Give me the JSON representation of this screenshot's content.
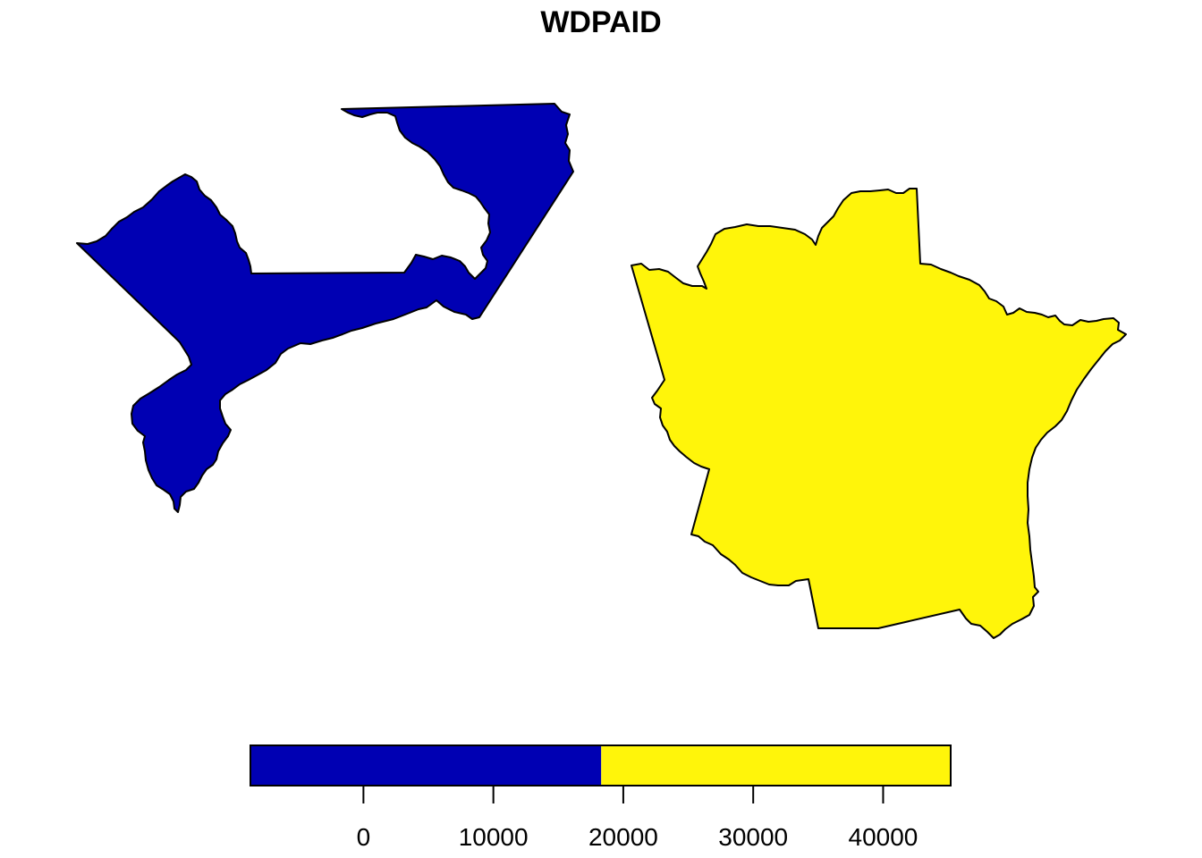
{
  "title": "WDPAID",
  "regions": [
    {
      "id": "left-region",
      "color": "#0000B3",
      "class": "low"
    },
    {
      "id": "right-region",
      "color": "#FFF50A",
      "class": "high"
    }
  ],
  "legend": {
    "type": "colorbar",
    "range": [
      -8700,
      45200
    ],
    "breaks": [
      -8700,
      18300,
      45200
    ],
    "colors": [
      "#0000B3",
      "#FFF50A"
    ],
    "ticks": [
      {
        "value": 0,
        "label": "0"
      },
      {
        "value": 10000,
        "label": "10000"
      },
      {
        "value": 20000,
        "label": "20000"
      },
      {
        "value": 30000,
        "label": "30000"
      },
      {
        "value": 40000,
        "label": "40000"
      }
    ]
  }
}
